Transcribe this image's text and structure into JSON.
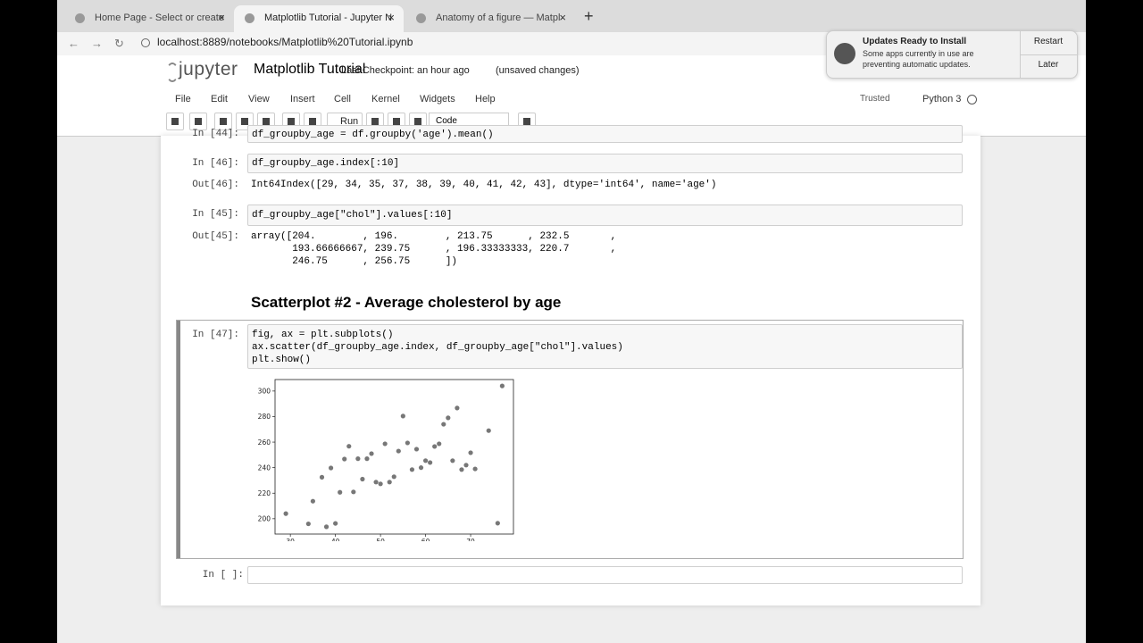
{
  "browser": {
    "tabs": [
      "Home Page - Select or create",
      "Matplotlib Tutorial - Jupyter N",
      "Anatomy of a figure — Matpl"
    ],
    "url": "localhost:8889/notebooks/Matplotlib%20Tutorial.ipynb"
  },
  "notification": {
    "title": "Updates Ready to Install",
    "body": [
      "Some apps currently in use are",
      "preventing automatic updates."
    ],
    "buttons": [
      "Restart",
      "Later"
    ]
  },
  "header": {
    "logo": "jupyter",
    "title": "Matplotlib Tutorial",
    "checkpoint": "Last Checkpoint: an hour ago",
    "status": "(unsaved changes)"
  },
  "menu": [
    "File",
    "Edit",
    "View",
    "Insert",
    "Cell",
    "Kernel",
    "Widgets",
    "Help"
  ],
  "kernel": {
    "trusted": "Trusted",
    "name": "Python 3"
  },
  "toolbar": {
    "run": "Run",
    "cell_type": "Code"
  },
  "cells": [
    {
      "prompt": "In [44]:",
      "source": [
        "df_groupby_age = df.groupby('age').mean()"
      ]
    },
    {
      "prompt": "In [46]:",
      "source": [
        "df_groupby_age.index[:10]"
      ],
      "output_prompt": "Out[46]:",
      "output": [
        "Int64Index([29, 34, 35, 37, 38, 39, 40, 41, 42, 43], dtype='int64', name='age')"
      ]
    },
    {
      "prompt": "In [45]:",
      "source": [
        "df_groupby_age[\"chol\"].values[:10]"
      ],
      "output_prompt": "Out[45]:",
      "output": [
        "array([204.        , 196.        , 213.75      , 232.5       ,",
        "       193.66666667, 239.75      , 196.33333333, 220.7       ,",
        "       246.75      , 256.75      ])"
      ]
    },
    {
      "heading": "Scatterplot #2 - Average cholesterol by age"
    },
    {
      "prompt": "In [47]:",
      "source": [
        "fig, ax = plt.subplots()",
        "ax.scatter(df_groupby_age.index, df_groupby_age[\"chol\"].values)",
        "plt.show()"
      ]
    },
    {
      "prompt": "In [ ]:"
    }
  ],
  "chart_data": {
    "type": "scatter",
    "color": "#777777",
    "x": [
      29,
      34,
      35,
      37,
      38,
      39,
      40,
      41,
      42,
      43,
      44,
      45,
      46,
      47,
      48,
      49,
      50,
      51,
      52,
      53,
      54,
      55,
      56,
      57,
      58,
      59,
      60,
      61,
      62,
      63,
      64,
      65,
      66,
      67,
      68,
      69,
      70,
      71,
      74,
      76,
      77
    ],
    "values": [
      204,
      196,
      213.75,
      232.5,
      193.67,
      239.75,
      196.33,
      220.7,
      246.75,
      256.75,
      221,
      247,
      231,
      247,
      251,
      228.7,
      227.3,
      258.7,
      228.7,
      232.9,
      253,
      280.4,
      259.4,
      238.5,
      254.5,
      240,
      245.5,
      244,
      256.6,
      258.7,
      274,
      279,
      245.5,
      286.7,
      238.5,
      242,
      251.7,
      239,
      269,
      196.5,
      304
    ],
    "xlim": [
      26.6,
      79.5
    ],
    "ylim": [
      188,
      309
    ],
    "xticks": [
      30,
      40,
      50,
      60,
      70
    ],
    "yticks": [
      200,
      220,
      240,
      260,
      280,
      300
    ],
    "grid": false
  }
}
